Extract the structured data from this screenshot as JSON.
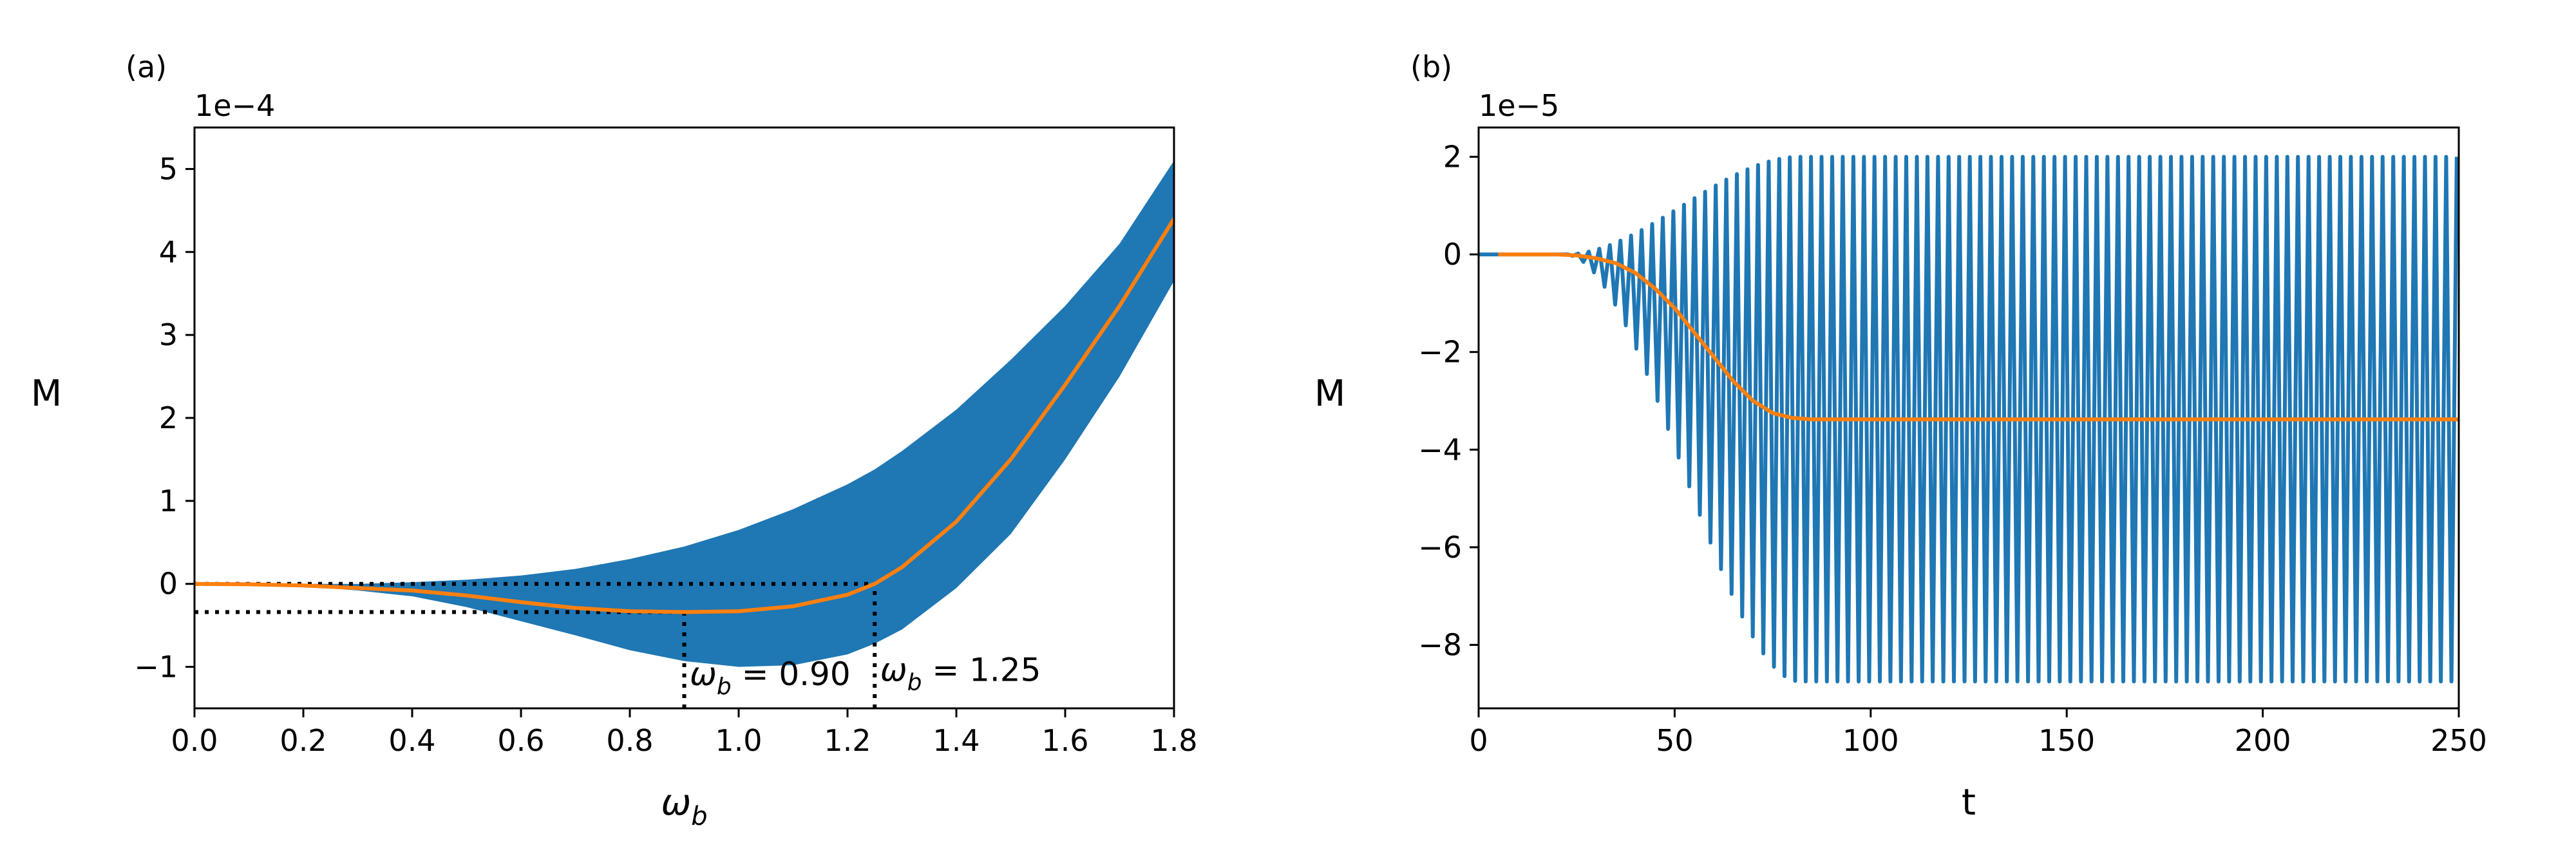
{
  "colors": {
    "band": "#1f77b4",
    "mean": "#ff7f0e",
    "guide": "#000000"
  },
  "chart_data": [
    {
      "id": "a",
      "type": "area",
      "panel_label": "(a)",
      "title": "",
      "xlabel": "ω_b",
      "ylabel": "M",
      "y_multiplier_label": "1e−4",
      "xlim": [
        0.0,
        1.8
      ],
      "ylim": [
        -1.5,
        5.5
      ],
      "xticks": [
        0.0,
        0.2,
        0.4,
        0.6,
        0.8,
        1.0,
        1.2,
        1.4,
        1.6,
        1.8
      ],
      "xtick_labels": [
        "0.0",
        "0.2",
        "0.4",
        "0.6",
        "0.8",
        "1.0",
        "1.2",
        "1.4",
        "1.6",
        "1.8"
      ],
      "yticks": [
        -1,
        0,
        1,
        2,
        3,
        4,
        5
      ],
      "ytick_labels": [
        "−1",
        "0",
        "1",
        "2",
        "3",
        "4",
        "5"
      ],
      "grid": false,
      "x": [
        0.0,
        0.1,
        0.2,
        0.3,
        0.4,
        0.5,
        0.6,
        0.7,
        0.8,
        0.9,
        1.0,
        1.1,
        1.2,
        1.25,
        1.3,
        1.4,
        1.5,
        1.6,
        1.7,
        1.8
      ],
      "series": [
        {
          "name": "band upper",
          "values": [
            0.0,
            0.0,
            0.0,
            0.0,
            0.02,
            0.05,
            0.1,
            0.18,
            0.3,
            0.45,
            0.65,
            0.9,
            1.2,
            1.38,
            1.6,
            2.1,
            2.7,
            3.35,
            4.1,
            5.1
          ]
        },
        {
          "name": "band lower",
          "values": [
            0.0,
            -0.01,
            -0.03,
            -0.08,
            -0.15,
            -0.28,
            -0.45,
            -0.62,
            -0.8,
            -0.93,
            -1.0,
            -0.98,
            -0.85,
            -0.72,
            -0.55,
            -0.05,
            0.6,
            1.5,
            2.5,
            3.65
          ]
        },
        {
          "name": "mean",
          "values": [
            0.0,
            -0.005,
            -0.02,
            -0.05,
            -0.08,
            -0.14,
            -0.22,
            -0.29,
            -0.33,
            -0.34,
            -0.33,
            -0.27,
            -0.13,
            0.0,
            0.2,
            0.75,
            1.5,
            2.4,
            3.35,
            4.4
          ]
        }
      ],
      "annotations": [
        {
          "type": "hline",
          "y": 0.0,
          "x_start": 0.0,
          "x_end": 1.25
        },
        {
          "type": "hline",
          "y": -0.34,
          "x_start": 0.0,
          "x_end": 0.9
        },
        {
          "type": "vline",
          "x": 0.9,
          "y_start": -1.5,
          "y_end": -0.34
        },
        {
          "type": "vline",
          "x": 1.25,
          "y_start": -1.5,
          "y_end": 0.0
        }
      ],
      "text_annotations": [
        {
          "label": "ω_b = 0.90",
          "x": 0.91,
          "y": -1.22
        },
        {
          "label": "ω_b = 1.25",
          "x": 1.26,
          "y": -1.17
        }
      ]
    },
    {
      "id": "b",
      "type": "line",
      "panel_label": "(b)",
      "title": "",
      "xlabel": "t",
      "ylabel": "M",
      "y_multiplier_label": "1e−5",
      "xlim": [
        0,
        250
      ],
      "ylim": [
        -9.3,
        2.6
      ],
      "xticks": [
        0,
        50,
        100,
        150,
        200,
        250
      ],
      "xtick_labels": [
        "0",
        "50",
        "100",
        "150",
        "200",
        "250"
      ],
      "yticks": [
        -8,
        -6,
        -4,
        -2,
        0,
        2
      ],
      "ytick_labels": [
        "−8",
        "−6",
        "−4",
        "−2",
        "0",
        "2"
      ],
      "grid": false,
      "series": [
        {
          "name": "oscillation",
          "kind": "oscillation",
          "period": 2.7,
          "start_t": 22,
          "saturation_t": 82,
          "upper_amplitude": 2.0,
          "lower_amplitude": -8.75,
          "pre_oscillation_value": 0.0
        },
        {
          "name": "mean",
          "kind": "curve",
          "x": [
            5,
            20,
            25,
            30,
            35,
            40,
            45,
            50,
            55,
            60,
            65,
            70,
            75,
            80,
            85,
            90,
            95,
            100,
            150,
            200,
            250
          ],
          "values": [
            0.0,
            0.0,
            -0.02,
            -0.08,
            -0.18,
            -0.38,
            -0.7,
            -1.1,
            -1.6,
            -2.1,
            -2.6,
            -3.0,
            -3.25,
            -3.35,
            -3.38,
            -3.38,
            -3.38,
            -3.38,
            -3.38,
            -3.38,
            -3.38
          ]
        }
      ]
    }
  ]
}
